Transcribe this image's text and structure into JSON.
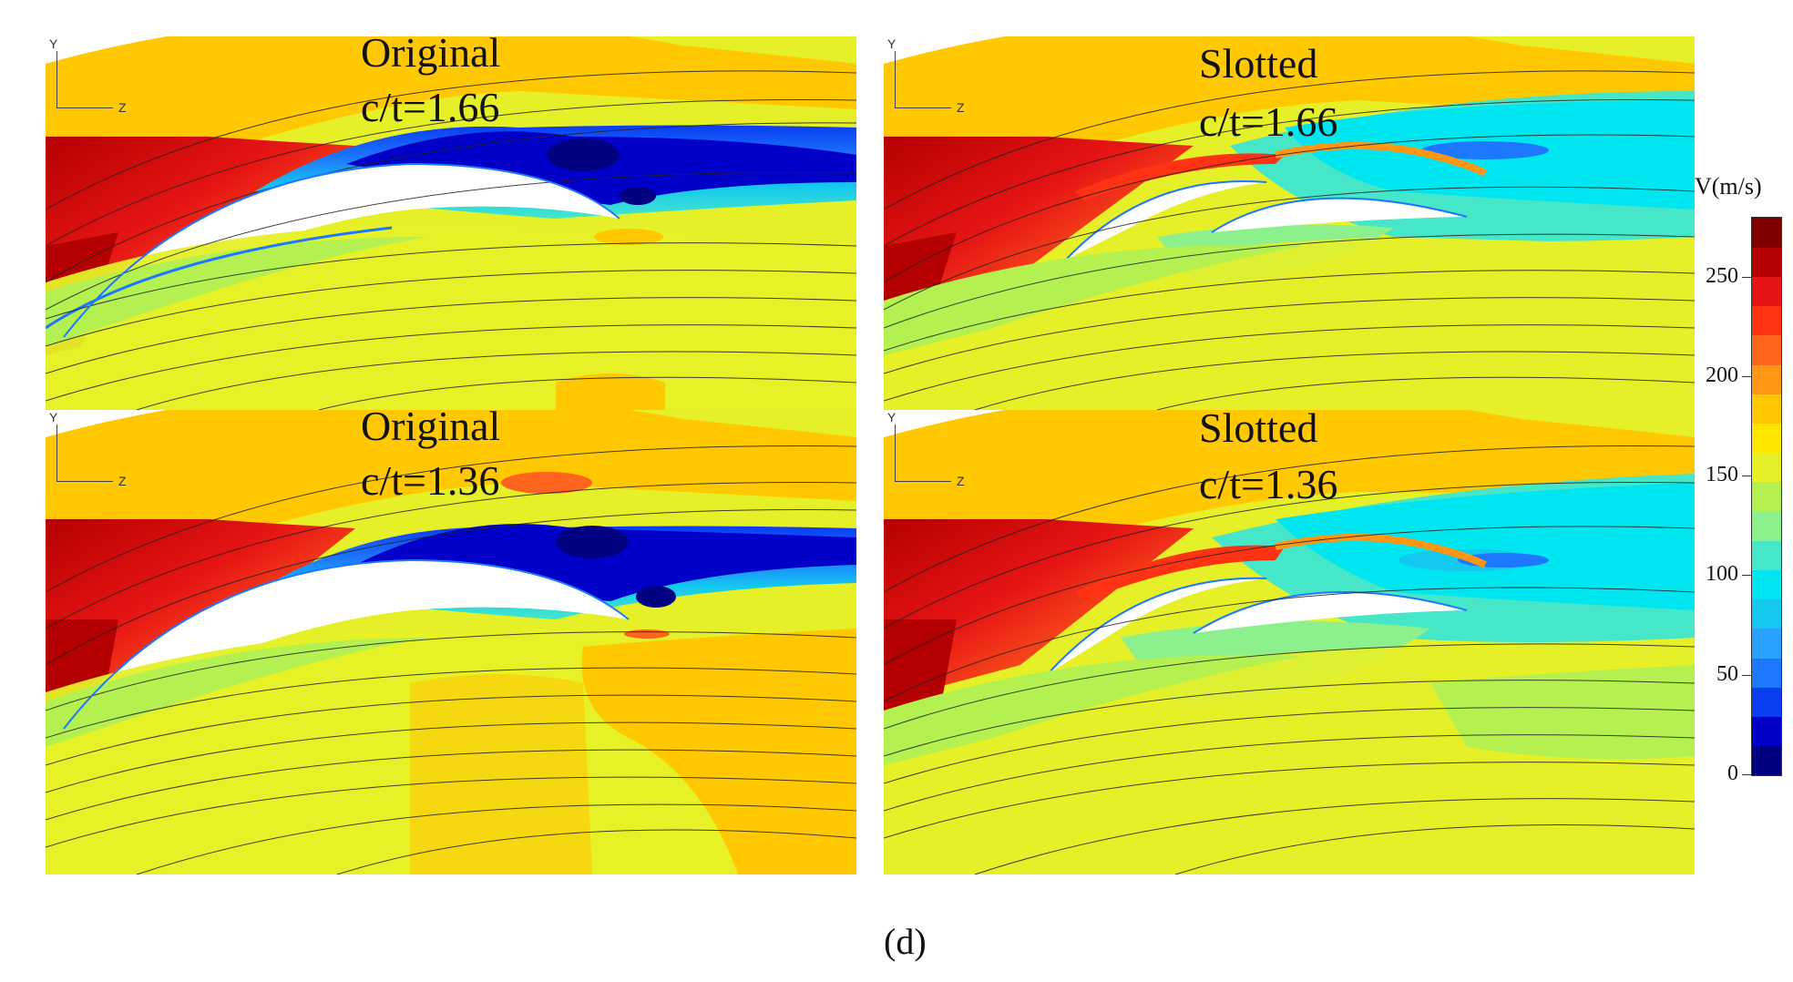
{
  "panels": {
    "top_left": {
      "title": "Original",
      "ratio": "c/t=1.66"
    },
    "top_right": {
      "title": "Slotted",
      "ratio": "c/t=1.66"
    },
    "bottom_left": {
      "title": "Original",
      "ratio": "c/t=1.36"
    },
    "bottom_right": {
      "title": "Slotted",
      "ratio": "c/t=1.36"
    }
  },
  "axes": {
    "y": "Y",
    "z": "Z"
  },
  "colorbar": {
    "title": "V(m/s)",
    "min": 0,
    "max": 280,
    "ticks": [
      "0",
      "50",
      "100",
      "150",
      "200",
      "250"
    ],
    "colors": [
      "#000080",
      "#0000c8",
      "#0a3cf0",
      "#1e78ff",
      "#28a0ff",
      "#14c8f0",
      "#00e6f0",
      "#46e6c8",
      "#8cf08c",
      "#b4f050",
      "#e6f028",
      "#ffe600",
      "#ffc800",
      "#ff9614",
      "#ff641e",
      "#ff3214",
      "#e61414",
      "#b40000",
      "#800000"
    ]
  },
  "figure_label": "(d)"
}
